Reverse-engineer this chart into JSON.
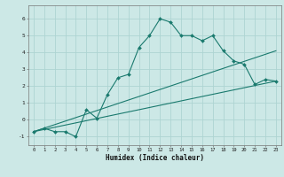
{
  "title": "",
  "xlabel": "Humidex (Indice chaleur)",
  "ylabel": "",
  "background_color": "#cce8e6",
  "grid_color": "#aed4d2",
  "line_color": "#1a7a6e",
  "xlim": [
    -0.5,
    23.5
  ],
  "ylim": [
    -1.5,
    6.8
  ],
  "xticks": [
    0,
    1,
    2,
    3,
    4,
    5,
    6,
    7,
    8,
    9,
    10,
    11,
    12,
    13,
    14,
    15,
    16,
    17,
    18,
    19,
    20,
    21,
    22,
    23
  ],
  "yticks": [
    -1,
    0,
    1,
    2,
    3,
    4,
    5,
    6
  ],
  "line1_x": [
    0,
    1,
    2,
    3,
    4,
    5,
    6,
    7,
    8,
    9,
    10,
    11,
    12,
    13,
    14,
    15,
    16,
    17,
    18,
    19,
    20,
    21,
    22,
    23
  ],
  "line1_y": [
    -0.7,
    -0.5,
    -0.7,
    -0.7,
    -1.0,
    0.6,
    0.1,
    1.5,
    2.5,
    2.7,
    4.3,
    5.0,
    6.0,
    5.8,
    5.0,
    5.0,
    4.7,
    5.0,
    4.1,
    3.5,
    3.3,
    2.1,
    2.4,
    2.3
  ],
  "line2_x": [
    0,
    23
  ],
  "line2_y": [
    -0.7,
    4.1
  ],
  "line3_x": [
    0,
    23
  ],
  "line3_y": [
    -0.7,
    2.3
  ]
}
